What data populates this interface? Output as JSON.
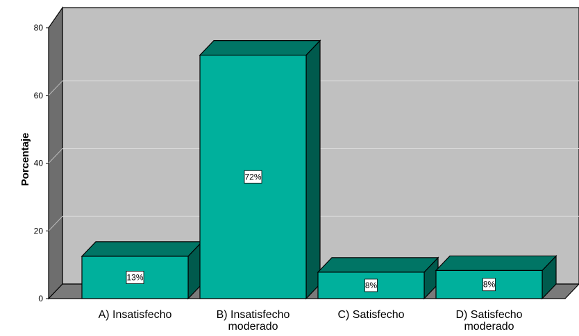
{
  "chart_data": {
    "type": "bar",
    "categories": [
      [
        "A) Insatisfecho"
      ],
      [
        "B) Insatisfecho",
        "moderado"
      ],
      [
        "C) Satisfecho"
      ],
      [
        "D) Satisfecho",
        "moderado"
      ]
    ],
    "values": [
      12.5,
      71.9,
      7.8,
      8.3
    ],
    "data_labels": [
      "13%",
      "72%",
      "8%",
      "8%"
    ],
    "ylabel": "Porcentaje",
    "xlabel": "",
    "ylim": [
      0,
      80
    ],
    "yticks": [
      0,
      20,
      40,
      60,
      80
    ],
    "grid": true,
    "colors": {
      "bar_front": "#00b09c",
      "bar_top": "#007565",
      "bar_side": "#005a4d",
      "plot_wall": "#c0c0c0",
      "floor": "#7a7a7a",
      "left_wall": "#6e6e6e",
      "gridline": "#d9d9d9"
    }
  }
}
